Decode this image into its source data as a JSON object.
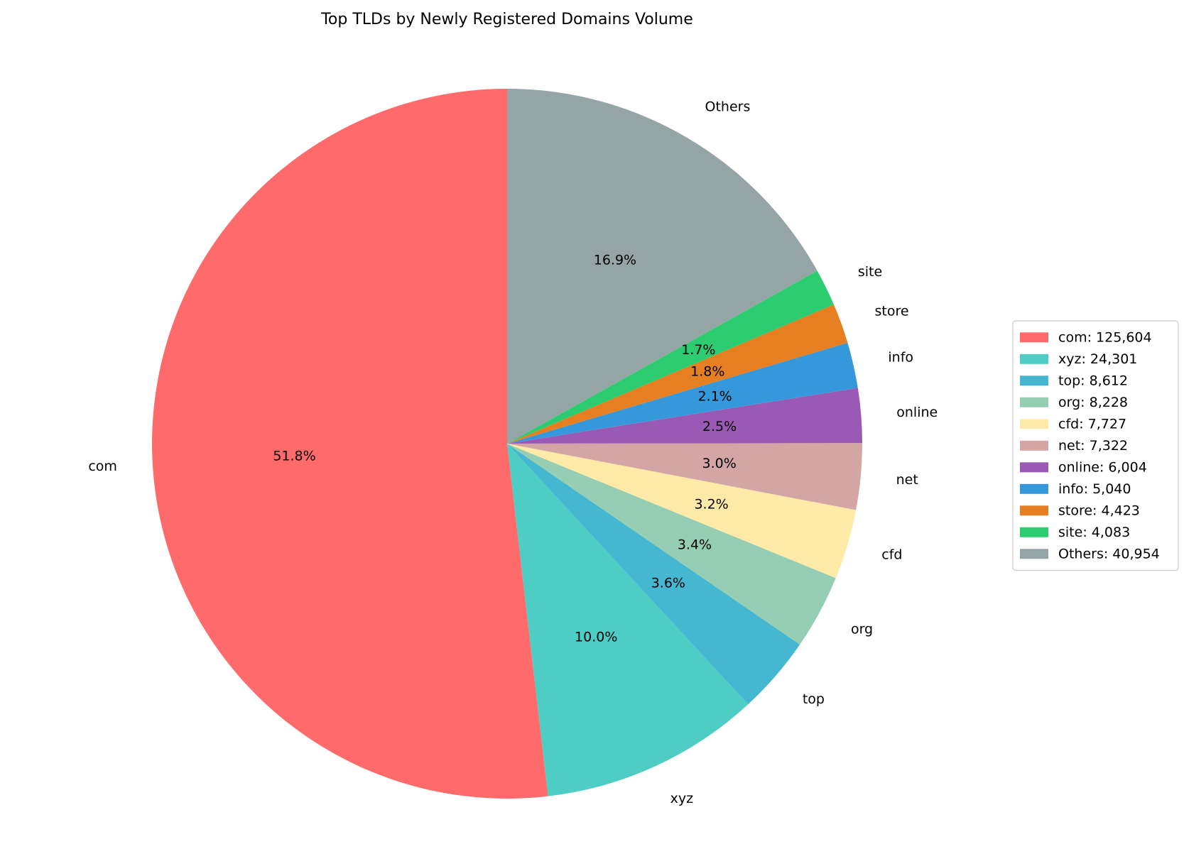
{
  "chart_data": {
    "type": "pie",
    "title": "Top TLDs by Newly Registered Domains Volume",
    "start_angle_deg": 90,
    "direction": "counterclockwise",
    "legend_placement": "right",
    "slices": [
      {
        "label": "com",
        "value": 125604,
        "percent_label": "51.8%",
        "legend_label": "com: 125,604",
        "color": "#ff6b6b"
      },
      {
        "label": "xyz",
        "value": 24301,
        "percent_label": "10.0%",
        "legend_label": "xyz: 24,301",
        "color": "#4ecdc4"
      },
      {
        "label": "top",
        "value": 8612,
        "percent_label": "3.6%",
        "legend_label": "top: 8,612",
        "color": "#45b7d1"
      },
      {
        "label": "org",
        "value": 8228,
        "percent_label": "3.4%",
        "legend_label": "org: 8,228",
        "color": "#96ceb4"
      },
      {
        "label": "cfd",
        "value": 7727,
        "percent_label": "3.2%",
        "legend_label": "cfd: 7,727",
        "color": "#ffeaa7"
      },
      {
        "label": "net",
        "value": 7322,
        "percent_label": "3.0%",
        "legend_label": "net: 7,322",
        "color": "#d4a5a5"
      },
      {
        "label": "online",
        "value": 6004,
        "percent_label": "2.5%",
        "legend_label": "online: 6,004",
        "color": "#9b59b6"
      },
      {
        "label": "info",
        "value": 5040,
        "percent_label": "2.1%",
        "legend_label": "info: 5,040",
        "color": "#3498db"
      },
      {
        "label": "store",
        "value": 4423,
        "percent_label": "1.8%",
        "legend_label": "store: 4,423",
        "color": "#e67e22"
      },
      {
        "label": "site",
        "value": 4083,
        "percent_label": "1.7%",
        "legend_label": "site: 4,083",
        "color": "#2ecc71"
      },
      {
        "label": "Others",
        "value": 40954,
        "percent_label": "16.9%",
        "legend_label": "Others: 40,954",
        "color": "#95a5a6"
      }
    ]
  }
}
